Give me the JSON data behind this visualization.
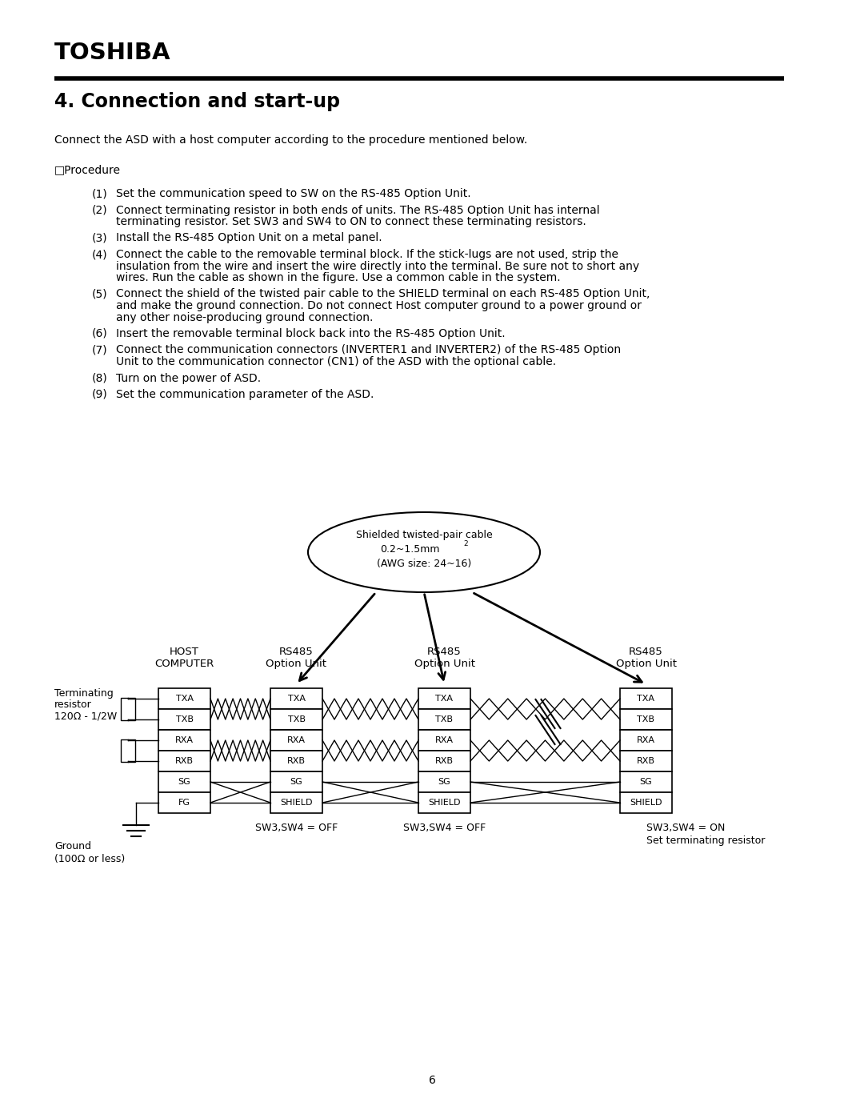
{
  "page_bg": "#ffffff",
  "toshiba_text": "TOSHIBA",
  "title": "4. Connection and start-up",
  "intro": "Connect the ASD with a host computer according to the procedure mentioned below.",
  "procedure_label": "□Procedure",
  "steps": [
    {
      "num": "(1)",
      "text": "Set the communication speed to SW on the RS-485 Option Unit.",
      "indent": false
    },
    {
      "num": "(2)",
      "text": "Connect terminating resistor in both ends of units. The RS-485 Option Unit has internal\nterminating resistor. Set SW3 and SW4 to ON to connect these terminating resistors.",
      "indent": false
    },
    {
      "num": "(3)",
      "text": "Install the RS-485 Option Unit on a metal panel.",
      "indent": false
    },
    {
      "num": "(4)",
      "text": "Connect the cable to the removable terminal block. If the stick-lugs are not used, strip the\ninsulation from the wire and insert the wire directly into the terminal. Be sure not to short any\nwires. Run the cable as shown in the figure. Use a common cable in the system.",
      "indent": false
    },
    {
      "num": "(5)",
      "text": "Connect the shield of the twisted pair cable to the SHIELD terminal on each RS-485 Option Unit,\nand make the ground connection. Do not connect Host computer ground to a power ground or\nany other noise-producing ground connection.",
      "indent": false
    },
    {
      "num": "(6)",
      "text": "Insert the removable terminal block back into the RS-485 Option Unit.",
      "indent": false
    },
    {
      "num": "(7)",
      "text": "Connect the communication connectors (INVERTER1 and INVERTER2) of the RS-485 Option\nUnit to the communication connector (CN1) of the ASD with the optional cable.",
      "indent": false
    },
    {
      "num": "(8)",
      "text": "Turn on the power of ASD.",
      "indent": false
    },
    {
      "num": "(9)",
      "text": "Set the communication parameter of the ASD.",
      "indent": false
    }
  ],
  "cable_label_line1": "Shielded twisted-pair cable",
  "cable_label_line2": "0.2~1.5mm",
  "cable_label_sup": "2",
  "cable_label_line3": "(AWG size: 24~16)",
  "host_label": "HOST\nCOMPUTER",
  "rs485_labels": [
    "RS485\nOption Unit",
    "RS485\nOption Unit",
    "RS485\nOption Unit"
  ],
  "term_label1": "Terminating",
  "term_label2": "resistor",
  "term_label3": "120Ω - 1/2W",
  "ground_label1": "Ground",
  "ground_label2": "(100Ω or less)",
  "sw_off_label1": "SW3,SW4 = OFF",
  "sw_off_label2": "SW3,SW4 = OFF",
  "sw_on_label1": "SW3,SW4 = ON",
  "sw_on_label2": "Set terminating resistor",
  "page_number": "6",
  "host_rows": [
    "TXA",
    "TXB",
    "RXA",
    "RXB",
    "SG",
    "FG"
  ],
  "rs485_rows": [
    "TXA",
    "TXB",
    "RXA",
    "RXB",
    "SG",
    "SHIELD"
  ]
}
